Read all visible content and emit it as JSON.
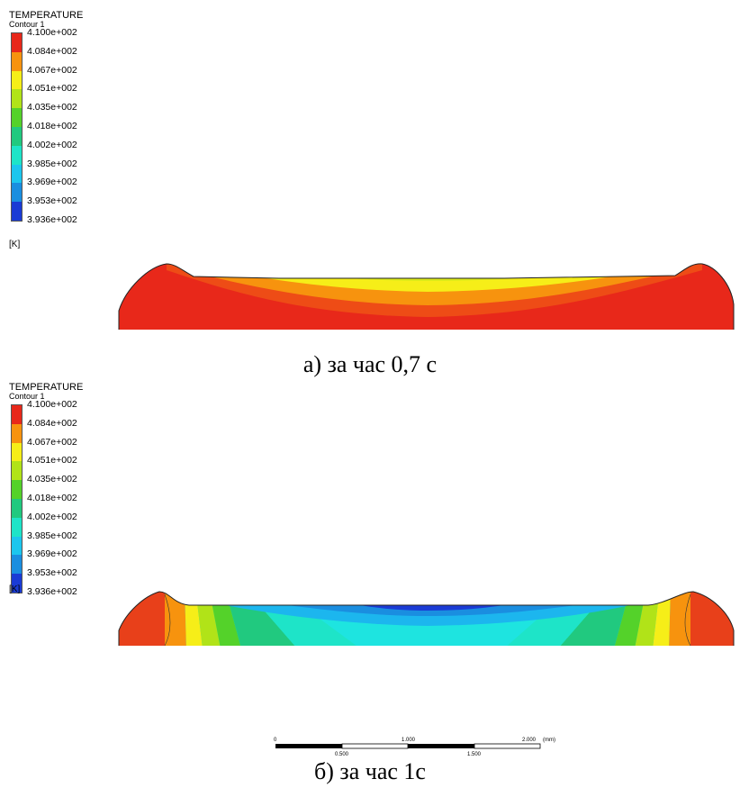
{
  "legend": {
    "title": "TEMPERATURE",
    "subtitle": "Contour 1",
    "unit": "[K]",
    "ticks": [
      "4.100e+002",
      "4.084e+002",
      "4.067e+002",
      "4.051e+002",
      "4.035e+002",
      "4.018e+002",
      "4.002e+002",
      "3.985e+002",
      "3.969e+002",
      "3.953e+002",
      "3.936e+002"
    ],
    "colors": [
      "#e8281a",
      "#f7930e",
      "#f6ee18",
      "#b1e318",
      "#54d22a",
      "#21c97f",
      "#1ee4c8",
      "#1cc6ee",
      "#1a8ee0",
      "#1a3bd5"
    ]
  },
  "panels": [
    {
      "caption": "а) за час 0,7 с"
    },
    {
      "caption": "б) за час 1с"
    }
  ],
  "scale_bar": {
    "top_labels": [
      "0",
      "1.000",
      "2.000"
    ],
    "bottom_labels": [
      "0.500",
      "1.500"
    ],
    "unit": "(mm)"
  }
}
